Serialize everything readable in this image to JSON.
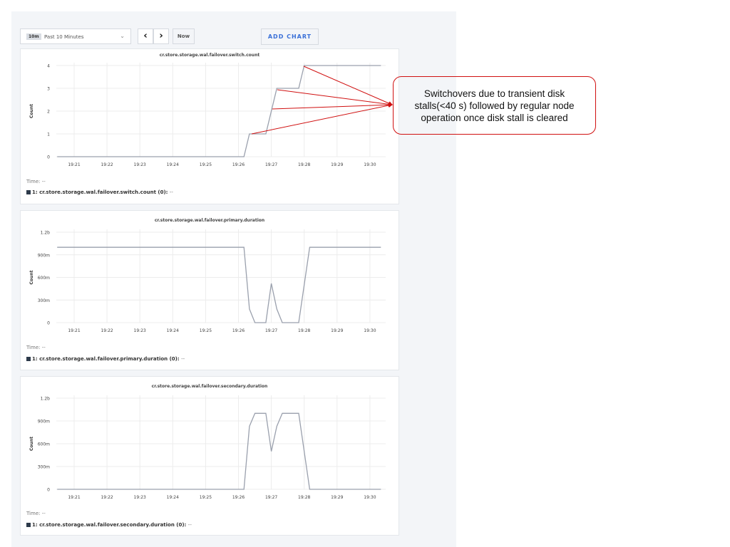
{
  "toolbar": {
    "range_badge": "10m",
    "range_label": "Past 10 Minutes",
    "prev_icon": "chevron-left-icon",
    "next_icon": "chevron-right-icon",
    "now_label": "Now",
    "add_chart_label": "ADD CHART"
  },
  "annotation": {
    "text": "Switchovers due to transient disk stalls(<40 s) followed by regular node operation once disk stall is cleared",
    "color": "#d01010"
  },
  "chart_data": [
    {
      "type": "line",
      "title": "cr.store.storage.wal.failover.switch.count",
      "ylabel": "Count",
      "x_ticks": [
        "19:21",
        "19:22",
        "19:23",
        "19:24",
        "19:25",
        "19:26",
        "19:27",
        "19:28",
        "19:29",
        "19:30"
      ],
      "y_ticks": [
        "0",
        "1",
        "2",
        "3",
        "4"
      ],
      "y_tick_values": [
        0,
        1,
        2,
        3,
        4
      ],
      "ylim": [
        0,
        4
      ],
      "grid": true,
      "time_label": "Time:",
      "time_value": "--",
      "legend": {
        "label": "1: cr.store.storage.wal.failover.switch.count (0):",
        "value": "--"
      },
      "series": [
        {
          "color": "#9aa0ad",
          "x": [
            "19:20:29",
            "19:26:10",
            "19:26:20",
            "19:26:50",
            "19:27:10",
            "19:27:50",
            "19:28:00",
            "19:30:20"
          ],
          "y": [
            0,
            0,
            1,
            1,
            3,
            3,
            4,
            4
          ]
        }
      ]
    },
    {
      "type": "line",
      "title": "cr.store.storage.wal.failover.primary.duration",
      "ylabel": "Count",
      "x_ticks": [
        "19:21",
        "19:22",
        "19:23",
        "19:24",
        "19:25",
        "19:26",
        "19:27",
        "19:28",
        "19:29",
        "19:30"
      ],
      "y_ticks": [
        "0",
        "300m",
        "600m",
        "900m",
        "1.2b"
      ],
      "y_tick_values": [
        0,
        0.3,
        0.6,
        0.9,
        1.2
      ],
      "ylim": [
        0,
        1.2
      ],
      "grid": true,
      "time_label": "Time:",
      "time_value": "--",
      "legend": {
        "label": "1: cr.store.storage.wal.failover.primary.duration (0):",
        "value": "--"
      },
      "series": [
        {
          "color": "#9aa0ad",
          "x": [
            "19:20:29",
            "19:26:10",
            "19:26:20",
            "19:26:30",
            "19:26:50",
            "19:27:00",
            "19:27:10",
            "19:27:20",
            "19:27:50",
            "19:28:10",
            "19:30:20"
          ],
          "y": [
            1,
            1,
            0.18,
            0,
            0,
            0.52,
            0.18,
            0,
            0,
            1,
            1
          ]
        }
      ]
    },
    {
      "type": "line",
      "title": "cr.store.storage.wal.failover.secondary.duration",
      "ylabel": "Count",
      "x_ticks": [
        "19:21",
        "19:22",
        "19:23",
        "19:24",
        "19:25",
        "19:26",
        "19:27",
        "19:28",
        "19:29",
        "19:30"
      ],
      "y_ticks": [
        "0",
        "300m",
        "600m",
        "900m",
        "1.2b"
      ],
      "y_tick_values": [
        0,
        0.3,
        0.6,
        0.9,
        1.2
      ],
      "ylim": [
        0,
        1.2
      ],
      "grid": true,
      "time_label": "Time:",
      "time_value": "--",
      "legend": {
        "label": "1: cr.store.storage.wal.failover.secondary.duration (0):",
        "value": "--"
      },
      "series": [
        {
          "color": "#9aa0ad",
          "x": [
            "19:20:29",
            "19:26:10",
            "19:26:20",
            "19:26:30",
            "19:26:50",
            "19:27:00",
            "19:27:10",
            "19:27:20",
            "19:27:50",
            "19:28:10",
            "19:30:20"
          ],
          "y": [
            0,
            0,
            0.83,
            1,
            1,
            0.5,
            0.83,
            1,
            1,
            0,
            0
          ]
        }
      ]
    }
  ]
}
